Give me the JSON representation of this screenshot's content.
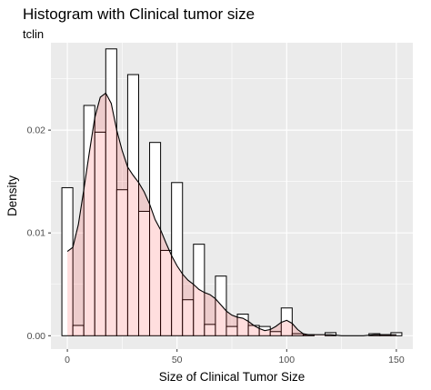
{
  "chart_data": {
    "type": "bar",
    "title": "Histogram with Clinical tumor size",
    "subtitle": "tclin",
    "xlabel": "Size of Clinical Tumor Size",
    "ylabel": "Density",
    "xlim": [
      -7.5,
      157.5
    ],
    "ylim": [
      -0.0013,
      0.0285
    ],
    "x_ticks": [
      0,
      50,
      100,
      150
    ],
    "x_tick_labels": [
      "0",
      "50",
      "100",
      "150"
    ],
    "y_ticks": [
      0.0,
      0.01,
      0.02
    ],
    "y_tick_labels": [
      "0.00",
      "0.01",
      "0.02"
    ],
    "grid": true,
    "histogram": {
      "bin_width": 5,
      "bin_centers": [
        0,
        5,
        10,
        15,
        20,
        25,
        30,
        35,
        40,
        45,
        50,
        55,
        60,
        65,
        70,
        75,
        80,
        85,
        90,
        95,
        100,
        105,
        110,
        115,
        120,
        125,
        130,
        135,
        140,
        145,
        150
      ],
      "density": [
        0.0144,
        0.001,
        0.0224,
        0.0198,
        0.0279,
        0.0142,
        0.0254,
        0.0121,
        0.0188,
        0.0083,
        0.0149,
        0.0035,
        0.0089,
        0.0011,
        0.0058,
        0.0009,
        0.0021,
        0.001,
        0.0009,
        0.0004,
        0.0027,
        0.0002,
        0.0001,
        0.0,
        0.0003,
        0.0,
        0.0,
        0.0,
        0.0002,
        0.0001,
        0.0003
      ],
      "fill": "#ffffff",
      "outline": "#000000"
    },
    "density_curve": {
      "x": [
        0,
        2.5,
        5,
        7.5,
        10,
        12.5,
        15,
        17.5,
        20,
        22.5,
        25,
        27.5,
        30,
        32.5,
        35,
        37.5,
        40,
        42.5,
        45,
        47.5,
        50,
        52.5,
        55,
        57.5,
        60,
        62.5,
        65,
        67.5,
        70,
        72.5,
        75,
        77.5,
        80,
        82.5,
        85,
        87.5,
        90,
        92.5,
        95,
        97.5,
        100,
        102.5,
        105,
        107.5,
        110,
        115,
        120,
        125,
        130,
        135,
        140,
        145,
        150
      ],
      "y": [
        0.0082,
        0.0086,
        0.0108,
        0.0142,
        0.0178,
        0.0212,
        0.0232,
        0.0236,
        0.0226,
        0.02,
        0.018,
        0.0164,
        0.0156,
        0.0149,
        0.014,
        0.0128,
        0.0113,
        0.0103,
        0.009,
        0.0078,
        0.0068,
        0.006,
        0.0054,
        0.005,
        0.0045,
        0.0042,
        0.004,
        0.0036,
        0.003,
        0.0024,
        0.002,
        0.0018,
        0.0017,
        0.0014,
        0.001,
        0.0007,
        0.0005,
        0.0006,
        0.0009,
        0.0013,
        0.0015,
        0.0012,
        0.0006,
        0.0002,
        0.0001,
        0.0001,
        0.0001,
        0.0,
        0.0,
        0.0,
        0.0001,
        0.0001,
        0.0001
      ],
      "fill": "#ff0000",
      "fill_opacity": 0.13,
      "line_color": "#000000"
    },
    "background": "#ebebeb",
    "gridline_color": "#ffffff"
  }
}
